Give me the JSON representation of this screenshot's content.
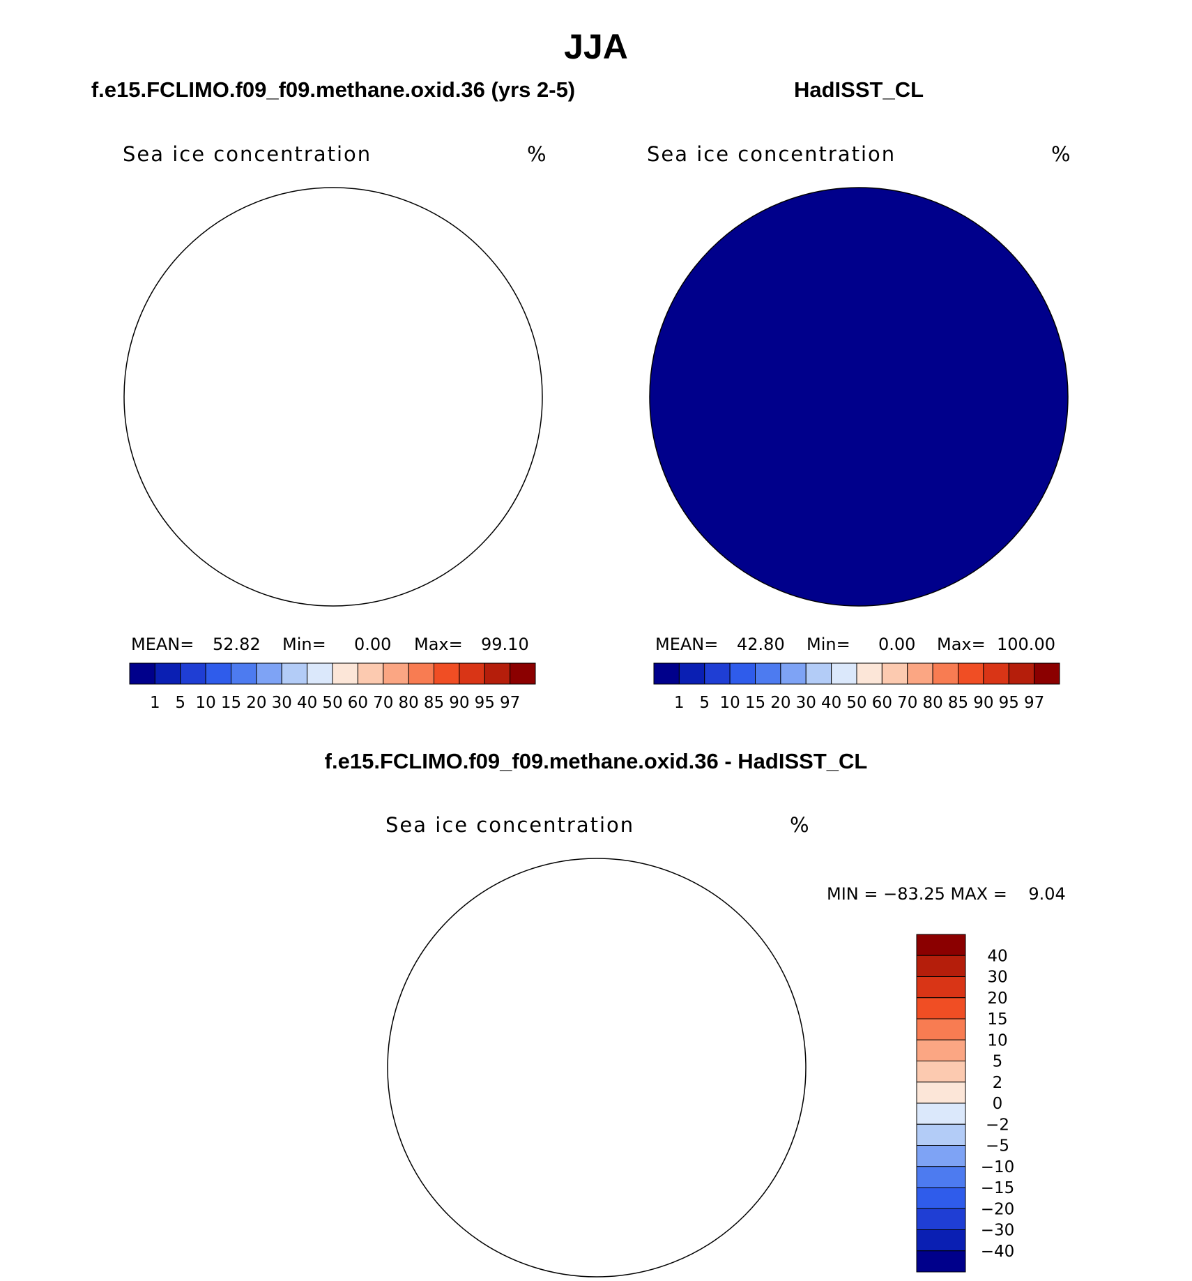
{
  "season": "JJA",
  "panels": {
    "model": {
      "case_title": "f.e15.FCLIMO.f09_f09.methane.oxid.36 (yrs 2-5)",
      "variable": "Sea ice concentration",
      "units": "%",
      "stats": {
        "mean_label": "MEAN=",
        "mean": "52.82",
        "min_label": "Min=",
        "min": "0.00",
        "max_label": "Max=",
        "max": "99.10"
      }
    },
    "obs": {
      "case_title": "HadISST_CL",
      "variable": "Sea ice concentration",
      "units": "%",
      "stats": {
        "mean_label": "MEAN=",
        "mean": "42.80",
        "min_label": "Min=",
        "min": "0.00",
        "max_label": "Max=",
        "max": "100.00"
      }
    },
    "diff": {
      "case_title": "f.e15.FCLIMO.f09_f09.methane.oxid.36 - HadISST_CL",
      "variable": "Sea ice concentration",
      "units": "%",
      "minmax_text": "MIN = −83.25 MAX =    9.04"
    }
  },
  "colorbar_main": {
    "colors": [
      "#00008b",
      "#0a1fb3",
      "#1f3ed4",
      "#2f5ceb",
      "#4d7bf0",
      "#7ea3f5",
      "#b3ccf7",
      "#dbe8fb",
      "#fce6d8",
      "#fccab0",
      "#fba683",
      "#f87c52",
      "#f04e24",
      "#d93516",
      "#b51e0b",
      "#8b0000"
    ],
    "labels": [
      "1",
      "5",
      "10",
      "15",
      "20",
      "30",
      "40",
      "50",
      "60",
      "70",
      "80",
      "85",
      "90",
      "95",
      "97"
    ]
  },
  "colorbar_diff": {
    "colors": [
      "#8b0000",
      "#b51e0b",
      "#d93516",
      "#f04e24",
      "#f87c52",
      "#fba683",
      "#fccab0",
      "#fce6d8",
      "#dbe8fb",
      "#b3ccf7",
      "#7ea3f5",
      "#4d7bf0",
      "#2f5ceb",
      "#1f3ed4",
      "#0a1fb3",
      "#00008b"
    ],
    "labels": [
      "40",
      "30",
      "20",
      "15",
      "10",
      "5",
      "2",
      "0",
      "−2",
      "−5",
      "−10",
      "−15",
      "−20",
      "−30",
      "−40"
    ]
  }
}
